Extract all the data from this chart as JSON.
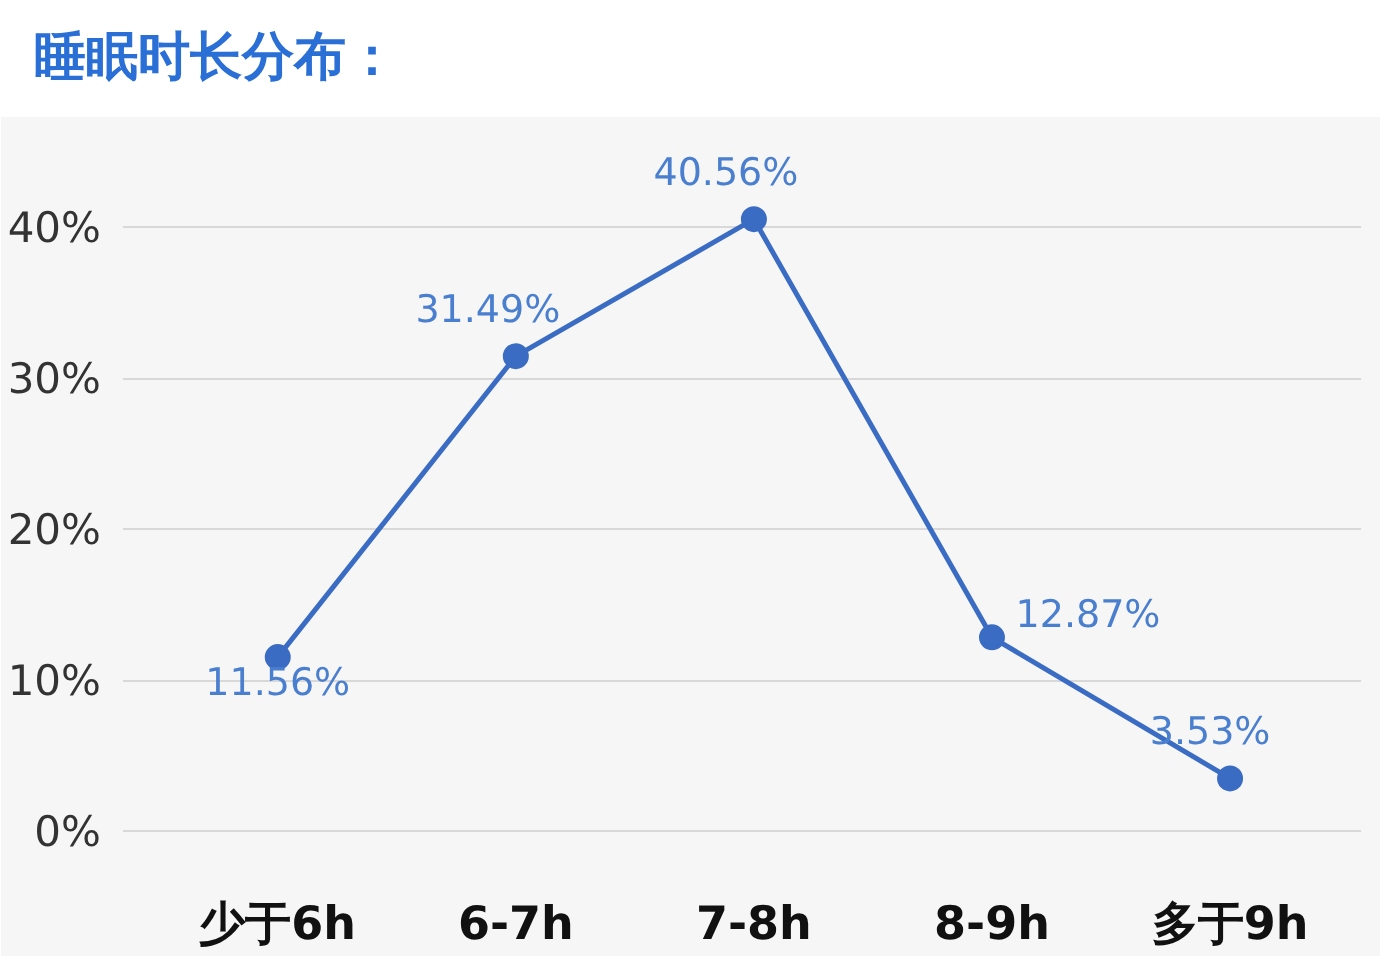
{
  "chart_data": {
    "type": "line",
    "title": "睡眠时长分布：",
    "categories": [
      "少于6h",
      "6-7h",
      "7-8h",
      "8-9h",
      "多于9h"
    ],
    "series": [
      {
        "color": "#3a6cc4",
        "values": [
          11.56,
          31.49,
          40.56,
          12.87,
          3.53
        ]
      }
    ],
    "ylim": [
      -3,
      46
    ],
    "yticks": [
      {
        "value": 0,
        "label": "0%"
      },
      {
        "value": 10,
        "label": "10%"
      },
      {
        "value": 20,
        "label": "20%"
      },
      {
        "value": 30,
        "label": "30%"
      },
      {
        "value": 40,
        "label": "40%"
      }
    ],
    "value_labels": [
      "11.56%",
      "31.49%",
      "40.56%",
      "12.87%",
      "3.53%"
    ],
    "grid": "y",
    "marker": "circle",
    "line_style": "solid"
  }
}
